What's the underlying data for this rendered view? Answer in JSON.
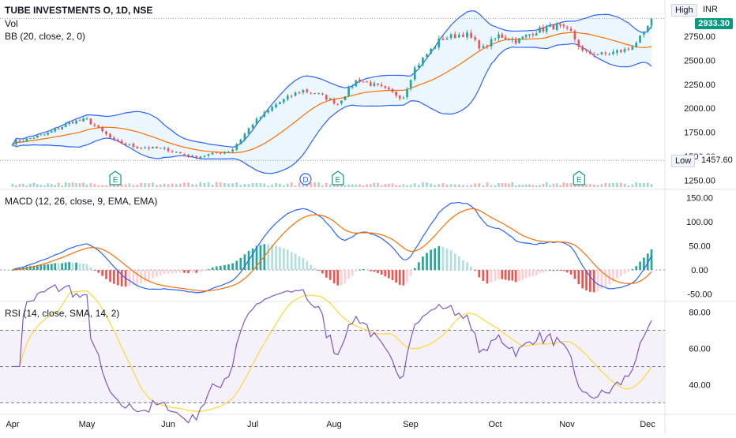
{
  "header": {
    "symbol": "TUBE INVESTMENTS O, 1D, NSE",
    "vol_label": "Vol",
    "bb_label": "BB (20, close, 2, 0)",
    "macd_label": "MACD (12, 26, close, 9, EMA, EMA)",
    "rsi_label": "RSI (14, close, SMA, 14, 2)"
  },
  "price_tags": {
    "high_label": "High",
    "currency": "INR",
    "last_price": "2933.30",
    "low_label": "Low",
    "low_price": "1457.60"
  },
  "colors": {
    "up": "#26a69a",
    "down": "#ef5350",
    "bb_band": "#2962ff",
    "bb_basis": "#ff6d00",
    "bb_fill": "#e3f2fd",
    "macd_line": "#2962ff",
    "signal_line": "#ff6d00",
    "rsi_line": "#7e57c2",
    "rsi_ma": "#fdd835",
    "rsi_band": "#ede7f6"
  },
  "events": [
    {
      "label": "E",
      "month_index": 1.35
    },
    {
      "label": "D",
      "month_index": 3.65
    },
    {
      "label": "E",
      "month_index": 4.05
    },
    {
      "label": "E",
      "month_index": 7.15
    }
  ],
  "chart_data": [
    {
      "type": "candlestick",
      "title": "TUBE INVESTMENTS O, 1D, NSE",
      "x_months": [
        "Apr",
        "May",
        "Jun",
        "Jul",
        "Aug",
        "Sep",
        "Oct",
        "Nov",
        "Dec"
      ],
      "y_ticks": [
        1250,
        1500,
        1750,
        2000,
        2250,
        2500,
        2750,
        2933.3
      ],
      "y_tick_labels": [
        "1250.00",
        "1500.00",
        "1750.00",
        "2000.00",
        "2250.00",
        "2500.00",
        "2750.00",
        "2933.30"
      ],
      "ylim": [
        1180,
        2980
      ],
      "close_anchors": [
        [
          0.0,
          1640
        ],
        [
          0.45,
          1730
        ],
        [
          0.8,
          1860
        ],
        [
          1.0,
          1880
        ],
        [
          1.35,
          1650
        ],
        [
          1.6,
          1600
        ],
        [
          2.0,
          1570
        ],
        [
          2.3,
          1490
        ],
        [
          2.75,
          1560
        ],
        [
          3.0,
          1840
        ],
        [
          3.3,
          2050
        ],
        [
          3.6,
          2190
        ],
        [
          3.8,
          2150
        ],
        [
          4.05,
          2050
        ],
        [
          4.3,
          2300
        ],
        [
          4.6,
          2220
        ],
        [
          4.9,
          2110
        ],
        [
          5.05,
          2420
        ],
        [
          5.35,
          2720
        ],
        [
          5.65,
          2780
        ],
        [
          5.85,
          2620
        ],
        [
          6.05,
          2760
        ],
        [
          6.3,
          2700
        ],
        [
          6.55,
          2800
        ],
        [
          6.85,
          2860
        ],
        [
          7.05,
          2790
        ],
        [
          7.2,
          2580
        ],
        [
          7.45,
          2560
        ],
        [
          7.75,
          2610
        ],
        [
          7.95,
          2760
        ],
        [
          8.05,
          2933.3
        ]
      ],
      "high_tag": 2933.3,
      "low_tag": 1457.6
    },
    {
      "type": "bar",
      "title": "Vol",
      "spike_month_index": 7.98,
      "spike_relative": 1.0,
      "typical_relative": 0.08
    },
    {
      "type": "line",
      "title": "BB (20, close, 2, 0)",
      "series": [
        {
          "name": "Upper"
        },
        {
          "name": "Basis"
        },
        {
          "name": "Lower"
        }
      ]
    },
    {
      "type": "line",
      "title": "MACD (12, 26, close, 9, EMA, EMA)",
      "y_ticks": [
        -50,
        0,
        50,
        100,
        150
      ],
      "y_tick_labels": [
        "-50.00",
        "0.00",
        "50.00",
        "100.00",
        "150.00"
      ],
      "ylim": [
        -62,
        162
      ],
      "series": [
        {
          "name": "MACD"
        },
        {
          "name": "Signal"
        },
        {
          "name": "Histogram"
        }
      ]
    },
    {
      "type": "line",
      "title": "RSI (14, close, SMA, 14, 2)",
      "y_ticks": [
        40,
        60,
        80
      ],
      "y_tick_labels": [
        "40.00",
        "60.00",
        "80.00"
      ],
      "ylim": [
        28,
        85
      ],
      "bands": [
        30,
        50,
        70
      ],
      "series": [
        {
          "name": "RSI"
        },
        {
          "name": "RSI-based MA"
        }
      ]
    }
  ]
}
